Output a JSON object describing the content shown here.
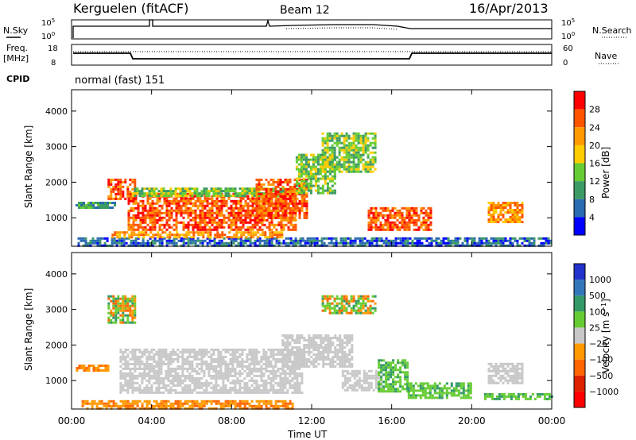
{
  "header": {
    "station": "Kerguelen (fitACF)",
    "beam": "Beam 12",
    "date": "16/Apr/2013"
  },
  "noise_panel": {
    "left_label": "N.Sky",
    "right_label": "N.Search",
    "left_ticks": [
      "10^5",
      "10^0"
    ],
    "right_ticks": [
      "10^5",
      "10^0"
    ]
  },
  "freq_panel": {
    "left_label_line1": "Freq.",
    "left_label_line2": "[MHz]",
    "right_label": "Nave",
    "left_ticks": [
      "18",
      "8"
    ],
    "right_ticks": [
      "60",
      "0"
    ]
  },
  "cpid": {
    "label": "CPID",
    "text": "normal (fast) 151"
  },
  "colors": {
    "power_scale": [
      "#0000ff",
      "#2a6ab0",
      "#3c9a64",
      "#66cc33",
      "#ffcc00",
      "#ff9900",
      "#ff5500",
      "#ff0000"
    ],
    "velocity_scale": [
      "#2233cc",
      "#3377bb",
      "#339966",
      "#66cc33",
      "#c8c8c8",
      "#ff9900",
      "#ff6600",
      "#dd2200",
      "#ff0000"
    ]
  },
  "chart_data": [
    {
      "type": "heatmap",
      "title": "",
      "xlabel": "Time UT",
      "ylabel": "Slant Range [km]",
      "x_ticks": [
        "00:00",
        "04:00",
        "08:00",
        "12:00",
        "16:00",
        "20:00",
        "00:00"
      ],
      "xlim_hours": [
        0,
        24
      ],
      "ylim": [
        200,
        4600
      ],
      "y_ticks": [
        1000,
        2000,
        3000,
        4000
      ],
      "colorbar": {
        "label": "Power [dB]",
        "ticks": [
          "4",
          "8",
          "12",
          "16",
          "20",
          "24",
          "28"
        ],
        "range": [
          0,
          32
        ]
      },
      "regions": [
        {
          "t0": 0.2,
          "t1": 2.2,
          "r0": 1250,
          "r1": 1450,
          "level": 2
        },
        {
          "t0": 1.8,
          "t1": 3.2,
          "r0": 1500,
          "r1": 2100,
          "level": 6
        },
        {
          "t0": 2.8,
          "t1": 11.2,
          "r0": 650,
          "r1": 1700,
          "level": 6
        },
        {
          "t0": 3.0,
          "t1": 11.0,
          "r0": 1600,
          "r1": 1850,
          "level": 3
        },
        {
          "t0": 9.2,
          "t1": 11.8,
          "r0": 1000,
          "r1": 2100,
          "level": 6
        },
        {
          "t0": 11.2,
          "t1": 13.2,
          "r0": 1700,
          "r1": 2800,
          "level": 3
        },
        {
          "t0": 12.5,
          "t1": 15.2,
          "r0": 2300,
          "r1": 3400,
          "level": 3
        },
        {
          "t0": 14.8,
          "t1": 18.0,
          "r0": 650,
          "r1": 1300,
          "level": 6
        },
        {
          "t0": 20.8,
          "t1": 22.5,
          "r0": 850,
          "r1": 1450,
          "level": 5
        },
        {
          "t0": 0.3,
          "t1": 24.0,
          "r0": 220,
          "r1": 450,
          "level": 1
        },
        {
          "t0": 2.0,
          "t1": 10.5,
          "r0": 450,
          "r1": 620,
          "level": 5
        }
      ]
    },
    {
      "type": "heatmap",
      "title": "",
      "xlabel": "Time UT",
      "ylabel": "Slant Range [km]",
      "x_ticks": [
        "00:00",
        "04:00",
        "08:00",
        "12:00",
        "16:00",
        "20:00",
        "00:00"
      ],
      "xlim_hours": [
        0,
        24
      ],
      "ylim": [
        200,
        4600
      ],
      "y_ticks": [
        1000,
        2000,
        3000,
        4000
      ],
      "colorbar": {
        "label": "Velocity [m s^-1]",
        "ticks": [
          "1000",
          "500",
          "100",
          "25",
          "−25",
          "−100",
          "−500",
          "−1000"
        ]
      },
      "regions": [
        {
          "t0": 2.4,
          "t1": 11.5,
          "r0": 650,
          "r1": 1900,
          "class": "ground"
        },
        {
          "t0": 10.5,
          "t1": 14.0,
          "r0": 1400,
          "r1": 2300,
          "class": "ground"
        },
        {
          "t0": 13.5,
          "t1": 15.5,
          "r0": 700,
          "r1": 1300,
          "class": "ground"
        },
        {
          "t0": 15.3,
          "t1": 16.8,
          "r0": 700,
          "r1": 1600,
          "class": "pos100"
        },
        {
          "t0": 16.8,
          "t1": 20.0,
          "r0": 500,
          "r1": 950,
          "class": "pos100"
        },
        {
          "t0": 20.5,
          "t1": 24.0,
          "r0": 450,
          "r1": 650,
          "class": "pos100"
        },
        {
          "t0": 20.8,
          "t1": 22.5,
          "r0": 900,
          "r1": 1500,
          "class": "ground"
        },
        {
          "t0": 0.1,
          "t1": 1.8,
          "r0": 1250,
          "r1": 1450,
          "class": "neg100"
        },
        {
          "t0": 1.8,
          "t1": 3.2,
          "r0": 2600,
          "r1": 3400,
          "class": "mixed"
        },
        {
          "t0": 12.5,
          "t1": 15.2,
          "r0": 2900,
          "r1": 3400,
          "class": "mixed"
        },
        {
          "t0": 0.5,
          "t1": 11.0,
          "r0": 220,
          "r1": 450,
          "class": "neg100"
        }
      ]
    }
  ]
}
